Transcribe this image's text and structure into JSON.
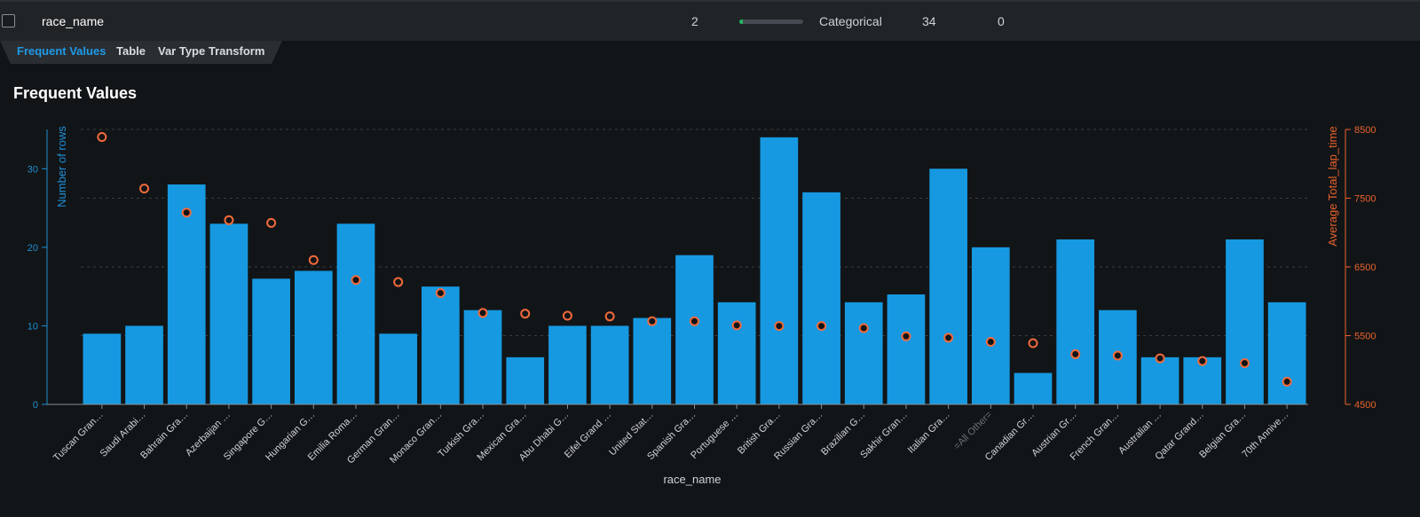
{
  "row": {
    "feature_name": "race_name",
    "index": "2",
    "var_type": "Categorical",
    "unique": "34",
    "missing": "0",
    "progress": 0.05
  },
  "tabs": [
    {
      "label": "Frequent Values",
      "active": true
    },
    {
      "label": "Table",
      "active": false
    },
    {
      "label": "Var Type Transform",
      "active": false
    }
  ],
  "section_title": "Frequent Values",
  "colors": {
    "bar": "#1699e1",
    "marker": "#f26a3c",
    "axis_left": "#1e8fd6",
    "axis_right": "#e9622d",
    "grid": "#3a3f43"
  },
  "chart_data": {
    "type": "bar",
    "xlabel": "race_name",
    "ylabel": "Number of rows",
    "y2label": "Average Total_lap_time",
    "ylim": [
      0,
      35
    ],
    "y2lim": [
      4500,
      8500
    ],
    "yticks": [
      0,
      10,
      20,
      30
    ],
    "y2ticks": [
      4500,
      5500,
      6500,
      7500,
      8500
    ],
    "grid": true,
    "categories": [
      "Tuscan Gran…",
      "Saudi Arabi…",
      "Bahrain Gra…",
      "Azerbaijan …",
      "Singapore G…",
      "Hungarian G…",
      "Emilia Roma…",
      "German Gran…",
      "Monaco Gran…",
      "Turkish Gra…",
      "Mexican Gra…",
      "Abu Dhabi G…",
      "Eifel Grand …",
      "United Stat…",
      "Spanish Gra…",
      "Portuguese …",
      "British Gra…",
      "Russian Gra…",
      "Brazilian G…",
      "Sakhir Gran…",
      "Italian Gra…",
      "=All Other=",
      "Canadian Gr…",
      "Austrian Gr…",
      "French Gran…",
      "Australian …",
      "Qatar Grand…",
      "Belgian Gra…",
      "70th Annive…"
    ],
    "muted_categories": [
      "=All Other="
    ],
    "series": [
      {
        "type": "bar",
        "axis": "left",
        "values": [
          9,
          10,
          28,
          23,
          16,
          17,
          23,
          9,
          15,
          12,
          6,
          10,
          10,
          11,
          19,
          13,
          34,
          27,
          13,
          14,
          30,
          20,
          4,
          21,
          12,
          6,
          6,
          21,
          13
        ]
      },
      {
        "type": "scatter",
        "axis": "right",
        "values": [
          8390,
          7640,
          7290,
          7180,
          7140,
          6600,
          6310,
          6280,
          6120,
          5830,
          5820,
          5790,
          5780,
          5710,
          5710,
          5650,
          5640,
          5640,
          5610,
          5490,
          5470,
          5410,
          5390,
          5230,
          5210,
          5170,
          5130,
          5100,
          4830
        ]
      }
    ]
  }
}
